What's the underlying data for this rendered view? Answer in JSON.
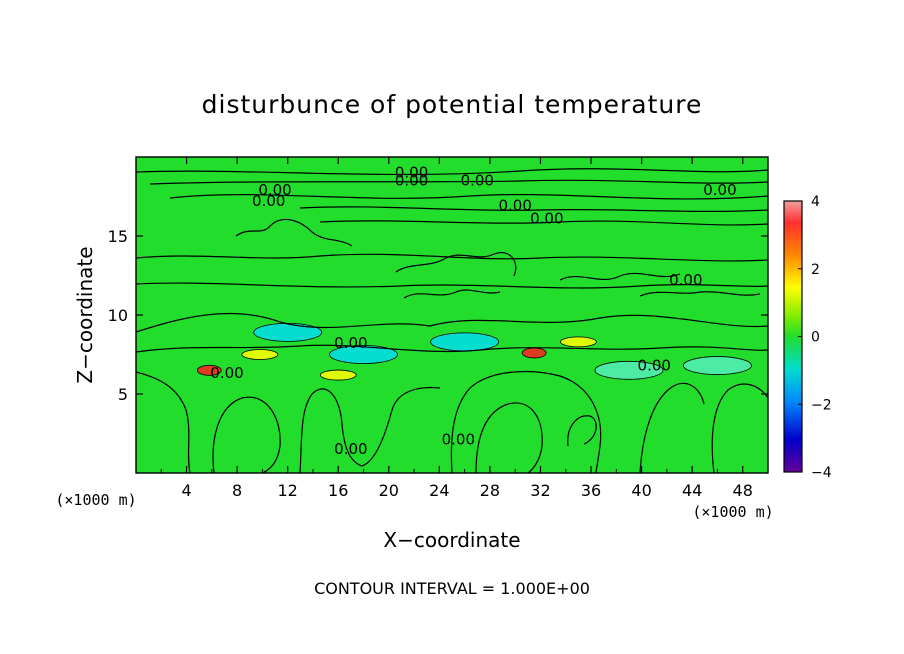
{
  "chart_data": {
    "type": "heatmap",
    "title": "disturbunce of potential temperature",
    "xlabel": "X−coordinate",
    "ylabel": "Z−coordinate",
    "x_unit_left": "(×1000 m)",
    "x_unit_right": "(×1000 m)",
    "footer": "CONTOUR INTERVAL = 1.000E+00",
    "xlim": [
      0,
      50
    ],
    "ylim": [
      0,
      20
    ],
    "x_ticks": [
      4,
      8,
      12,
      16,
      20,
      24,
      28,
      32,
      36,
      40,
      44,
      48
    ],
    "y_ticks": [
      5,
      10,
      15
    ],
    "colorbar": {
      "vmin": -4,
      "vmax": 4,
      "ticks": [
        4,
        2,
        0,
        -2,
        -4
      ]
    },
    "contour_labels": [
      {
        "text": "0.00",
        "x": 11.0,
        "y": 17.6
      },
      {
        "text": "0.00",
        "x": 10.5,
        "y": 16.9
      },
      {
        "text": "0.00",
        "x": 21.8,
        "y": 18.7
      },
      {
        "text": "0.00",
        "x": 21.8,
        "y": 18.2
      },
      {
        "text": "0.00",
        "x": 27.0,
        "y": 18.2
      },
      {
        "text": "0.00",
        "x": 30.0,
        "y": 16.6
      },
      {
        "text": "0.00",
        "x": 32.5,
        "y": 15.8
      },
      {
        "text": "0.00",
        "x": 46.2,
        "y": 17.6
      },
      {
        "text": "0.00",
        "x": 43.5,
        "y": 11.9
      },
      {
        "text": "0.00",
        "x": 17.0,
        "y": 7.9
      },
      {
        "text": "0.00",
        "x": 7.2,
        "y": 6.0
      },
      {
        "text": "0.00",
        "x": 41.0,
        "y": 6.5
      },
      {
        "text": "0.00",
        "x": 17.0,
        "y": 1.2
      },
      {
        "text": "0.00",
        "x": 25.5,
        "y": 1.8
      }
    ],
    "anomalies": [
      {
        "sign": "negative",
        "x": 12,
        "y": 8.9,
        "value": -1.2
      },
      {
        "sign": "negative",
        "x": 18,
        "y": 7.5,
        "value": -1.2
      },
      {
        "sign": "negative",
        "x": 26,
        "y": 8.3,
        "value": -1.0
      },
      {
        "sign": "negative",
        "x": 39,
        "y": 6.5,
        "value": -0.8
      },
      {
        "sign": "negative",
        "x": 46,
        "y": 6.8,
        "value": -0.8
      },
      {
        "sign": "positive",
        "x": 5.8,
        "y": 6.5,
        "value": 3.5
      },
      {
        "sign": "positive",
        "x": 31.5,
        "y": 7.6,
        "value": 3.0
      },
      {
        "sign": "positive",
        "x": 9.8,
        "y": 7.5,
        "value": 1.2
      },
      {
        "sign": "positive",
        "x": 35,
        "y": 8.3,
        "value": 1.2
      },
      {
        "sign": "positive",
        "x": 16,
        "y": 6.2,
        "value": 1.2
      }
    ]
  },
  "colors": {
    "field_base": "#22dd2c",
    "colorbar": [
      "#f0a0a0",
      "#ff2020",
      "#ff8800",
      "#ffff00",
      "#22dd2c",
      "#00dddd",
      "#0088ff",
      "#0000cc",
      "#660099"
    ]
  }
}
